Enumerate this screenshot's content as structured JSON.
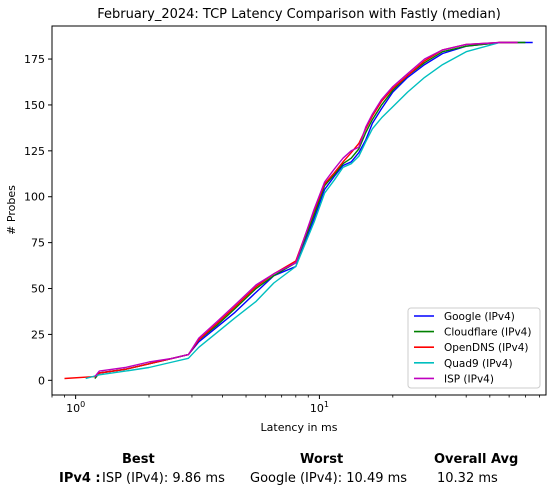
{
  "chart_data": {
    "type": "line",
    "title": "February_2024: TCP Latency Comparison with Fastly (median)",
    "xlabel": "Latency in ms",
    "ylabel": "# Probes",
    "xscale": "log",
    "xlim": [
      0.8,
      85
    ],
    "ylim": [
      -8,
      193
    ],
    "xticks": [
      1,
      10
    ],
    "xtick_labels": [
      "10^0",
      "10^1"
    ],
    "yticks": [
      0,
      25,
      50,
      75,
      100,
      125,
      150,
      175
    ],
    "grid": false,
    "legend": "lower-right",
    "series": [
      {
        "name": "Google (IPv4)",
        "color": "#0000ff",
        "x": [
          1.2,
          1.25,
          1.6,
          2.0,
          2.5,
          2.9,
          3.2,
          3.8,
          4.5,
          5.5,
          6.5,
          8.0,
          9.5,
          10.5,
          11.5,
          12.5,
          13.5,
          14.5,
          15.5,
          16.5,
          18,
          20,
          23,
          27,
          32,
          40,
          55,
          75
        ],
        "y": [
          1,
          4,
          6,
          9,
          12,
          14,
          21,
          29,
          37,
          48,
          57,
          62,
          88,
          104,
          111,
          117,
          119,
          124,
          131,
          140,
          148,
          157,
          165,
          172,
          178,
          182,
          184,
          184
        ]
      },
      {
        "name": "Cloudflare (IPv4)",
        "color": "#008000",
        "x": [
          1.2,
          1.25,
          1.6,
          2.0,
          2.5,
          2.9,
          3.2,
          3.8,
          4.5,
          5.5,
          6.5,
          8.0,
          9.5,
          10.5,
          11.5,
          12.5,
          13.5,
          14.5,
          15.5,
          16.5,
          18,
          20,
          23,
          27,
          32,
          40,
          55,
          70
        ],
        "y": [
          1,
          4,
          6,
          9,
          12,
          14,
          22,
          30,
          39,
          50,
          57,
          64,
          90,
          106,
          112,
          118,
          121,
          126,
          135,
          142,
          150,
          158,
          166,
          173,
          179,
          182,
          184,
          184
        ]
      },
      {
        "name": "OpenDNS (IPv4)",
        "color": "#ff0000",
        "x": [
          0.9,
          1.2,
          1.25,
          1.6,
          2.0,
          2.5,
          2.9,
          3.2,
          3.8,
          4.5,
          5.5,
          6.5,
          8.0,
          9.5,
          10.5,
          11.5,
          12.5,
          13.5,
          14.5,
          15.5,
          16.5,
          18,
          20,
          23,
          27,
          32,
          40,
          55,
          65
        ],
        "y": [
          1,
          2,
          4,
          6,
          9,
          12,
          14,
          22,
          31,
          40,
          51,
          58,
          65,
          92,
          107,
          113,
          119,
          124,
          129,
          137,
          144,
          152,
          159,
          166,
          174,
          180,
          183,
          184,
          184
        ]
      },
      {
        "name": "Quad9 (IPv4)",
        "color": "#00bfbf",
        "x": [
          1.1,
          1.25,
          1.6,
          2.0,
          2.5,
          2.9,
          3.2,
          3.8,
          4.5,
          5.5,
          6.5,
          8.0,
          9.5,
          10.5,
          11.5,
          12.5,
          13.5,
          14.5,
          15.5,
          16.5,
          18,
          20,
          23,
          27,
          32,
          40,
          55
        ],
        "y": [
          1,
          3,
          5,
          7,
          10,
          12,
          18,
          26,
          34,
          43,
          53,
          62,
          86,
          102,
          109,
          116,
          118,
          122,
          130,
          137,
          143,
          149,
          157,
          165,
          172,
          179,
          184
        ]
      },
      {
        "name": "ISP (IPv4)",
        "color": "#bf00bf",
        "x": [
          1.2,
          1.25,
          1.6,
          2.0,
          2.5,
          2.9,
          3.2,
          3.8,
          4.5,
          5.5,
          6.5,
          8.0,
          9.5,
          10.5,
          11.5,
          12.5,
          13.5,
          14.5,
          15.5,
          16.5,
          18,
          20,
          23,
          27,
          32,
          40,
          55,
          65
        ],
        "y": [
          2,
          5,
          7,
          10,
          12,
          14,
          23,
          32,
          41,
          52,
          58,
          64,
          93,
          108,
          115,
          121,
          125,
          127,
          138,
          145,
          153,
          160,
          167,
          175,
          180,
          183,
          184,
          184
        ]
      }
    ]
  },
  "summary": {
    "best_header": "Best",
    "worst_header": "Worst",
    "avg_header": "Overall Avg",
    "row_label": "IPv4 :",
    "best_value": "ISP (IPv4): 9.86 ms",
    "worst_value": "Google (IPv4): 10.49 ms",
    "avg_value": "10.32 ms"
  }
}
